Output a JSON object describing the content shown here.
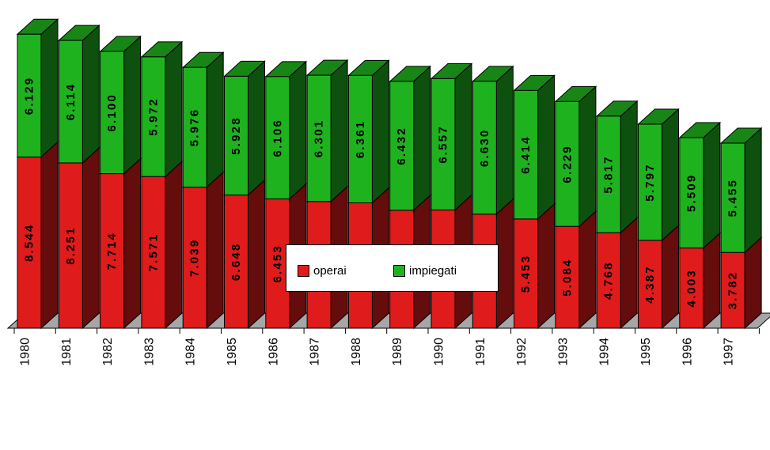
{
  "chart_data": {
    "type": "bar",
    "stacked": true,
    "three_d": true,
    "categories": [
      "1980",
      "1981",
      "1982",
      "1983",
      "1984",
      "1985",
      "1986",
      "1987",
      "1988",
      "1989",
      "1990",
      "1991",
      "1992",
      "1993",
      "1994",
      "1995",
      "1996",
      "1997"
    ],
    "series": [
      {
        "name": "operai",
        "color": "#e01b1b",
        "values": [
          8544,
          8251,
          7714,
          7571,
          7039,
          6648,
          6453,
          6325,
          6257,
          5888,
          5900,
          5693,
          5453,
          5084,
          4768,
          4387,
          4003,
          3782
        ],
        "labels": [
          "8.544",
          "8.251",
          "7.714",
          "7.571",
          "7.039",
          "6.648",
          "6.453",
          "6.325",
          "6.257",
          "5.888",
          "5.900",
          "5.693",
          "5.453",
          "5.084",
          "4.768",
          "4.387",
          "4.003",
          "3.782"
        ]
      },
      {
        "name": "impiegati",
        "color": "#1fb21f",
        "values": [
          6129,
          6114,
          6100,
          5972,
          5976,
          5928,
          6106,
          6301,
          6361,
          6432,
          6557,
          6630,
          6414,
          6229,
          5817,
          5797,
          5509,
          5455
        ],
        "labels": [
          "6.129",
          "6.114",
          "6.100",
          "5.972",
          "5.976",
          "5.928",
          "6.106",
          "6.301",
          "6.361",
          "6.432",
          "6.557",
          "6.630",
          "6.414",
          "6.229",
          "5.817",
          "5.797",
          "5.509",
          "5.455"
        ]
      }
    ],
    "xlabel": "",
    "ylabel": "",
    "gridlines": false,
    "legend_position": "bottom-center"
  }
}
